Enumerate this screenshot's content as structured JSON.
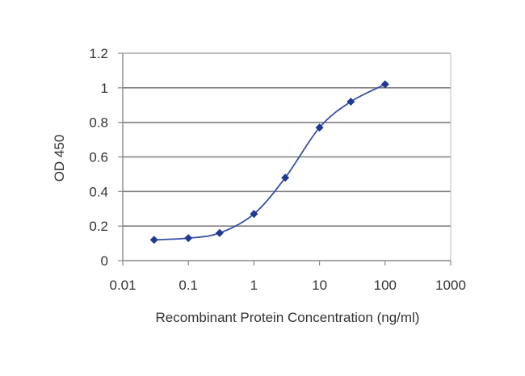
{
  "chart_data": {
    "type": "line",
    "xlabel": "Recombinant Protein Concentration (ng/ml)",
    "ylabel": "OD 450",
    "x_scale": "log",
    "xlim": [
      0.01,
      1000
    ],
    "ylim": [
      0,
      1.2
    ],
    "x_ticks": [
      "0.01",
      "0.1",
      "1",
      "10",
      "100",
      "1000"
    ],
    "y_ticks": [
      "0",
      "0.2",
      "0.4",
      "0.6",
      "0.8",
      "1",
      "1.2"
    ],
    "grid": "horizontal",
    "series": [
      {
        "x": [
          0.03,
          0.1,
          0.3,
          1,
          3,
          10,
          30,
          100
        ],
        "y": [
          0.12,
          0.13,
          0.16,
          0.27,
          0.48,
          0.77,
          0.92,
          1.02
        ]
      }
    ],
    "colors": {
      "line": "#3b4fa8",
      "marker": "#1f3a93",
      "grid": "#7f7f7f",
      "axis": "#888888"
    }
  }
}
